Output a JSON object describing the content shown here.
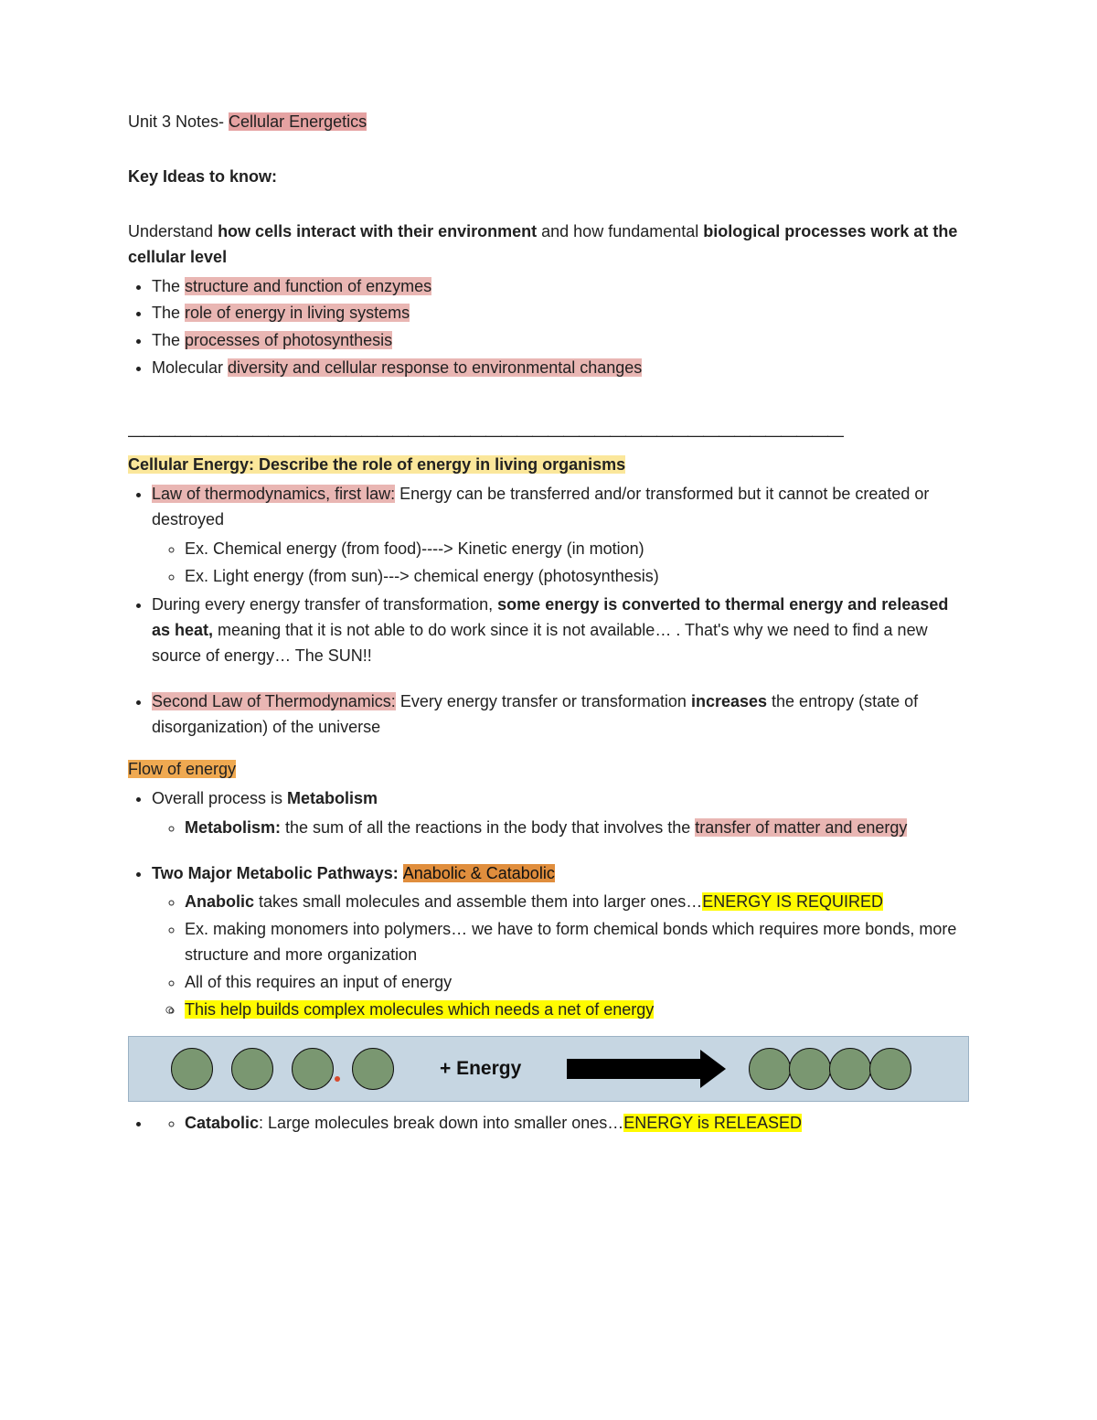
{
  "header": {
    "prefix": "Unit 3 Notes- ",
    "title_hl": "Cellular Energetics"
  },
  "key_ideas": {
    "heading": "Key Ideas to know:",
    "intro_plain_1": "Understand ",
    "intro_bold_1": "how cells interact with their environment",
    "intro_plain_2": " and how fundamental ",
    "intro_bold_2": "biological processes work at the cellular level",
    "bullets": [
      {
        "pre": "The ",
        "hl": "structure and function of enzymes"
      },
      {
        "pre": "The ",
        "hl": "role of energy in living systems"
      },
      {
        "pre": "The ",
        "hl": "processes of photosynthesis"
      },
      {
        "pre": "Molecular ",
        "hl": "diversity and cellular response to environmental changes"
      }
    ]
  },
  "divider": "——————————————————————————————————————————————",
  "cell_energy": {
    "heading": "Cellular Energy: Describe the role of energy in living organisms",
    "b1_hl": "Law of thermodynamics, first law:",
    "b1_rest": " Energy can be transferred and/or transformed but it cannot be created or destroyed",
    "b1_sub1": "Ex. Chemical energy (from food)----> Kinetic energy (in motion)",
    "b1_sub2": "Ex. Light energy (from sun)---> chemical energy (photosynthesis)",
    "b2_pre": "During every energy transfer of transformation, ",
    "b2_bold": "some energy is converted to thermal energy and released as heat,",
    "b2_post": " meaning that it is not able to do work since it is not available… . That's why we need to find a new source of energy… The SUN!!",
    "b3_hl": "Second Law of Thermodynamics:",
    "b3_mid": " Every energy transfer or transformation ",
    "b3_bold": "increases",
    "b3_post": " the entropy (state of disorganization) of the universe"
  },
  "flow": {
    "heading": "Flow of energy",
    "b1_pre": "Overall process is ",
    "b1_bold": "Metabolism",
    "metab_bold": "Metabolism:",
    "metab_mid": " the sum of all the reactions in the body that involves the ",
    "metab_hl": "transfer of matter and energy",
    "b2_bold": "Two Major Metabolic Pathways: ",
    "b2_hl": "Anabolic & Catabolic",
    "ana_bold": "Anabolic",
    "ana_mid": " takes small molecules and assemble them into larger ones…",
    "ana_hl": "ENERGY IS REQUIRED",
    "ana_sub2": "Ex. making monomers into polymers… we have to form chemical bonds which requires more bonds, more structure and more organization",
    "ana_sub3": "All of this requires an input of energy",
    "ana_sub4": "This help builds complex molecules which needs a net of energy",
    "cat_bold": "Catabolic",
    "cat_mid": ": Large molecules break down into smaller ones…",
    "cat_hl": "ENERGY is RELEASED"
  },
  "diagram": {
    "label": "+ Energy",
    "circle_fill": "#7a9771",
    "circle_border": "#111111",
    "bg": "#c6d6e2",
    "arrow_color": "#000000"
  },
  "colors": {
    "pink": "#e5a2a2",
    "rose": "#e9b6b3",
    "yellow_soft": "#fbe79b",
    "orange": "#efa951",
    "orange2": "#e08e3d",
    "yellow": "#fffb00",
    "text": "#212121"
  },
  "typography": {
    "body_fontsize": 18,
    "line_height": 1.55,
    "font_family": "Arial"
  }
}
